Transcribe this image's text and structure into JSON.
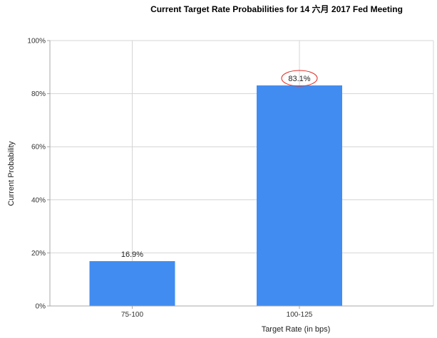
{
  "chart_data": {
    "type": "bar",
    "title": "Current Target Rate Probabilities for 14 六月 2017  Fed Meeting",
    "xlabel": "Target Rate (in bps)",
    "ylabel": "Current Probability",
    "categories": [
      "75-100",
      "100-125"
    ],
    "values": [
      16.9,
      83.1
    ],
    "data_labels": [
      "16.9%",
      "83.1%"
    ],
    "highlighted_label": "83.1%",
    "ylim": [
      0,
      100
    ],
    "y_ticks": [
      "0%",
      "20%",
      "40%",
      "60%",
      "80%",
      "100%"
    ],
    "grid": true,
    "legend": "none",
    "colors": {
      "bar": "#418cf0",
      "highlight": "#e0302a"
    }
  }
}
